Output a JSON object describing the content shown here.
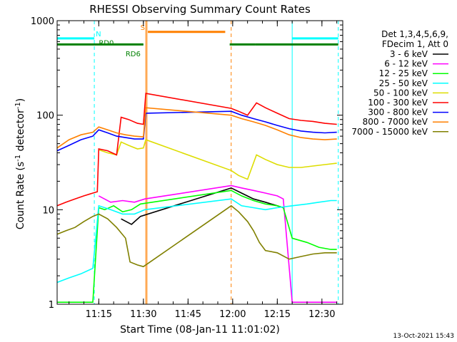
{
  "chart_data": {
    "type": "line",
    "title": "RHESSI Observing Summary Count Rates",
    "xlabel": "Start Time (08-Jan-11 11:01:02)",
    "ylabel_prefix": "Count Rate (s",
    "ylabel_sup1": "-1",
    "ylabel_mid": " detector",
    "ylabel_sup2": "-1",
    "ylabel_suffix": ")",
    "yscale": "log",
    "xlim": [
      0,
      96
    ],
    "ylim": [
      1,
      1000
    ],
    "x_unit": "minutes since 11:01:02",
    "x_ticks": [
      {
        "x": 14,
        "label": "11:15"
      },
      {
        "x": 29,
        "label": "11:30"
      },
      {
        "x": 44,
        "label": "11:45"
      },
      {
        "x": 59,
        "label": "12:00"
      },
      {
        "x": 74,
        "label": "12:15"
      },
      {
        "x": 89,
        "label": "12:30"
      }
    ],
    "y_ticks": [
      {
        "y": 1,
        "label": "1"
      },
      {
        "y": 10,
        "label": "10"
      },
      {
        "y": 100,
        "label": "100"
      },
      {
        "y": 1000,
        "label": "1000"
      }
    ],
    "legend_header": [
      "Det 1,3,4,5,6,9,",
      "FDecim 1, Att 0"
    ],
    "legend_position": "right",
    "series": [
      {
        "name": "3 - 6 keV",
        "color": "#000000",
        "points": [
          [
            21.5,
            8
          ],
          [
            25,
            7
          ],
          [
            28,
            8.5
          ],
          [
            58.5,
            17
          ],
          [
            62,
            15
          ],
          [
            66,
            13
          ],
          [
            70,
            12
          ],
          [
            74,
            11
          ],
          [
            76,
            10.5
          ]
        ]
      },
      {
        "name": "6 - 12 keV",
        "color": "#ff00ff",
        "points": [
          [
            14,
            14
          ],
          [
            18,
            12
          ],
          [
            22,
            12.5
          ],
          [
            26,
            12
          ],
          [
            29.5,
            13
          ],
          [
            58.5,
            18
          ],
          [
            62,
            17
          ],
          [
            66,
            16
          ],
          [
            70,
            15
          ],
          [
            74,
            14
          ],
          [
            76,
            13
          ],
          [
            79,
            1.05
          ],
          [
            84,
            1.05
          ],
          [
            88,
            1.05
          ],
          [
            94,
            1.05
          ]
        ]
      },
      {
        "name": "12 - 25 keV",
        "color": "#00ff00",
        "points": [
          [
            0,
            1.05
          ],
          [
            12,
            1.05
          ],
          [
            14,
            10.5
          ],
          [
            16,
            10
          ],
          [
            19,
            11
          ],
          [
            22,
            9.5
          ],
          [
            25,
            10
          ],
          [
            28,
            11.5
          ],
          [
            58.5,
            16
          ],
          [
            62,
            14
          ],
          [
            66,
            12.5
          ],
          [
            70,
            11.5
          ],
          [
            74,
            11
          ],
          [
            76,
            10.5
          ],
          [
            79,
            5
          ],
          [
            84,
            4.5
          ],
          [
            88,
            4
          ],
          [
            92,
            3.8
          ],
          [
            94,
            3.8
          ]
        ]
      },
      {
        "name": "25 - 50 keV",
        "color": "#00ffff",
        "points": [
          [
            0,
            1.7
          ],
          [
            4,
            1.9
          ],
          [
            8,
            2.1
          ],
          [
            12,
            2.4
          ],
          [
            14,
            11
          ],
          [
            18,
            10
          ],
          [
            22,
            9
          ],
          [
            26,
            9
          ],
          [
            29.5,
            10
          ],
          [
            58.5,
            13
          ],
          [
            62,
            11
          ],
          [
            66,
            10.5
          ],
          [
            70,
            10
          ],
          [
            74,
            10.5
          ],
          [
            79,
            11
          ],
          [
            84,
            11.5
          ],
          [
            88,
            12
          ],
          [
            92,
            12.5
          ],
          [
            94,
            12.5
          ]
        ]
      },
      {
        "name": "50 - 100 keV",
        "color": "#dddd00",
        "points": [
          [
            14,
            43
          ],
          [
            17,
            40
          ],
          [
            20,
            38
          ],
          [
            21.5,
            52
          ],
          [
            24,
            48
          ],
          [
            27,
            44
          ],
          [
            29,
            45
          ],
          [
            29.8,
            55
          ],
          [
            58.5,
            26
          ],
          [
            61,
            23
          ],
          [
            64,
            21
          ],
          [
            67,
            38
          ],
          [
            70,
            34
          ],
          [
            74,
            30
          ],
          [
            78,
            28
          ],
          [
            82,
            28
          ],
          [
            86,
            29
          ],
          [
            90,
            30
          ],
          [
            94,
            31
          ]
        ]
      },
      {
        "name": "100 - 300 keV",
        "color": "#ff0000",
        "points": [
          [
            0,
            11
          ],
          [
            3,
            12
          ],
          [
            6,
            13
          ],
          [
            9,
            14
          ],
          [
            12,
            15
          ],
          [
            13.5,
            15.5
          ],
          [
            14,
            44
          ],
          [
            17,
            42
          ],
          [
            20,
            38
          ],
          [
            21.5,
            95
          ],
          [
            24,
            90
          ],
          [
            27,
            82
          ],
          [
            29,
            80
          ],
          [
            29.8,
            170
          ],
          [
            58.5,
            118
          ],
          [
            61,
            110
          ],
          [
            64,
            100
          ],
          [
            67,
            135
          ],
          [
            70,
            120
          ],
          [
            74,
            105
          ],
          [
            78,
            92
          ],
          [
            82,
            88
          ],
          [
            86,
            86
          ],
          [
            90,
            82
          ],
          [
            94,
            80
          ]
        ]
      },
      {
        "name": "300 - 800 keV",
        "color": "#0000ff",
        "points": [
          [
            0,
            42
          ],
          [
            4,
            48
          ],
          [
            8,
            55
          ],
          [
            12,
            60
          ],
          [
            14,
            70
          ],
          [
            17,
            65
          ],
          [
            20,
            60
          ],
          [
            23,
            58
          ],
          [
            26,
            56
          ],
          [
            29,
            56
          ],
          [
            29.8,
            105
          ],
          [
            58.5,
            110
          ],
          [
            62,
            100
          ],
          [
            66,
            92
          ],
          [
            70,
            85
          ],
          [
            74,
            78
          ],
          [
            78,
            72
          ],
          [
            82,
            68
          ],
          [
            86,
            66
          ],
          [
            90,
            65
          ],
          [
            94,
            66
          ]
        ]
      },
      {
        "name": "800 - 7000 keV",
        "color": "#ff8000",
        "points": [
          [
            0,
            45
          ],
          [
            4,
            55
          ],
          [
            8,
            62
          ],
          [
            12,
            66
          ],
          [
            14,
            75
          ],
          [
            17,
            70
          ],
          [
            20,
            65
          ],
          [
            23,
            62
          ],
          [
            26,
            60
          ],
          [
            29,
            59
          ],
          [
            29.8,
            120
          ],
          [
            58.5,
            100
          ],
          [
            62,
            92
          ],
          [
            66,
            85
          ],
          [
            70,
            78
          ],
          [
            74,
            70
          ],
          [
            78,
            62
          ],
          [
            82,
            58
          ],
          [
            86,
            56
          ],
          [
            90,
            55
          ],
          [
            94,
            56
          ]
        ]
      },
      {
        "name": "7000 - 15000 keV",
        "color": "#808000",
        "points": [
          [
            0,
            5.5
          ],
          [
            3,
            6
          ],
          [
            6,
            6.5
          ],
          [
            9,
            7.5
          ],
          [
            12,
            8.5
          ],
          [
            14,
            9
          ],
          [
            17,
            8
          ],
          [
            20,
            6.5
          ],
          [
            23,
            5
          ],
          [
            24.5,
            2.8
          ],
          [
            27,
            2.6
          ],
          [
            29,
            2.5
          ],
          [
            58.5,
            11
          ],
          [
            61,
            9.5
          ],
          [
            64,
            7.5
          ],
          [
            66,
            6
          ],
          [
            68,
            4.5
          ],
          [
            70,
            3.7
          ],
          [
            74,
            3.5
          ],
          [
            78,
            3
          ],
          [
            82,
            3.2
          ],
          [
            86,
            3.4
          ],
          [
            90,
            3.5
          ],
          [
            94,
            3.5
          ]
        ]
      }
    ],
    "vlines": [
      {
        "x": 12.5,
        "color": "#00ffff",
        "style": "dashed"
      },
      {
        "x": 29.8,
        "color": "#ff8000",
        "style": "solid"
      },
      {
        "x": 30.2,
        "color": "#ff8000",
        "style": "solid"
      },
      {
        "x": 58.5,
        "color": "#ff8000",
        "style": "dashed"
      },
      {
        "x": 79,
        "color": "#00ffff",
        "style": "solid"
      },
      {
        "x": 94.5,
        "color": "#00ffff",
        "style": "dashed"
      }
    ],
    "flag_bars": [
      {
        "label": "N",
        "color": "#00ffff",
        "y": 650,
        "segments": [
          [
            0,
            12.5
          ],
          [
            79,
            94.5
          ]
        ],
        "label_x": 13
      },
      {
        "label": "S",
        "color": "#ff8000",
        "y": 760,
        "segments": [
          [
            30.5,
            56.5
          ]
        ],
        "label_x": 28
      },
      {
        "label": "RD0",
        "color": "#008000",
        "y": 560,
        "segments": [
          [
            0,
            29
          ],
          [
            58,
            66.5
          ],
          [
            66.5,
            94.5
          ]
        ],
        "label_x": 14
      },
      {
        "label": "RD6",
        "color": "#008000",
        "y": 510,
        "segments": [],
        "label_x": 23
      }
    ]
  },
  "footer_date": "13-Oct-2021 15:43"
}
